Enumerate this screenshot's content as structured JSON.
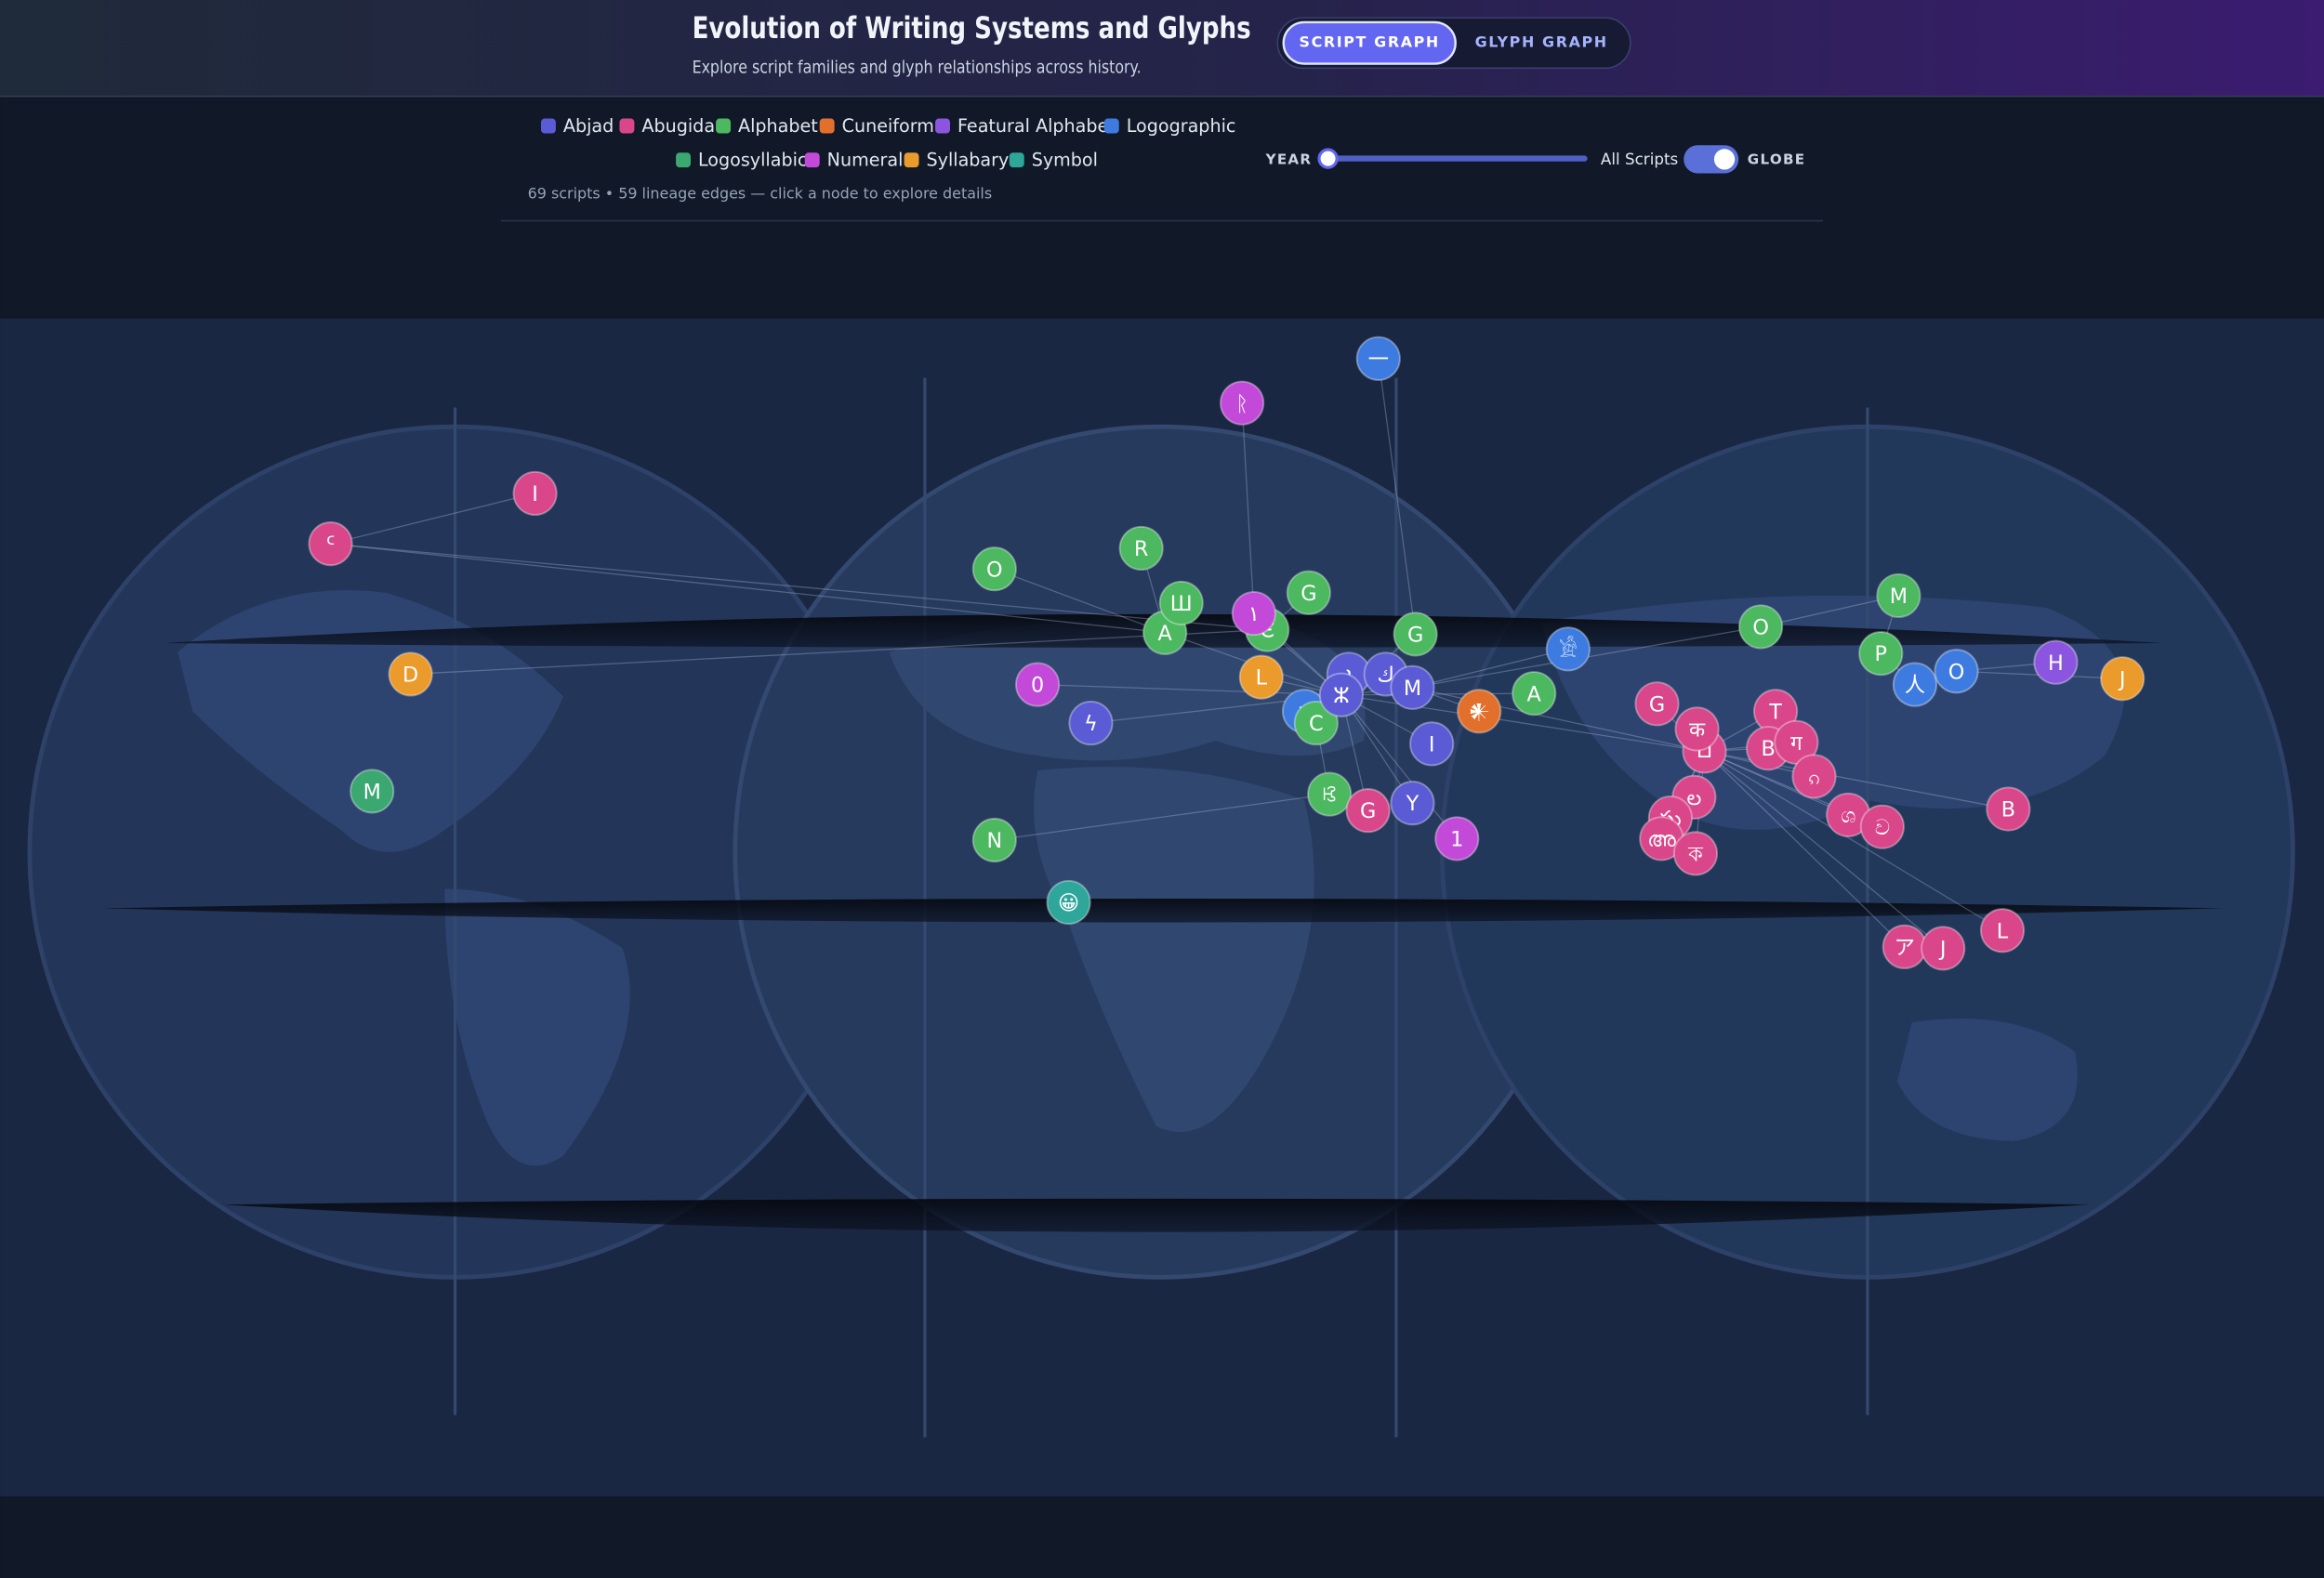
{
  "header": {
    "title": "Evolution of Writing Systems and Glyphs",
    "subtitle": "Explore script families and glyph relationships across history.",
    "tabs": [
      "SCRIPT GRAPH",
      "GLYPH GRAPH"
    ]
  },
  "legend": [
    {
      "label": "Abjad",
      "color": "#5b5bd6"
    },
    {
      "label": "Abugida",
      "color": "#d9478a"
    },
    {
      "label": "Alphabet",
      "color": "#4cb860"
    },
    {
      "label": "Cuneiform",
      "color": "#e2702c"
    },
    {
      "label": "Featural Alphabet",
      "color": "#8b55e0"
    },
    {
      "label": "Logographic",
      "color": "#3d7be0"
    },
    {
      "label": "Logosyllabic",
      "color": "#3aa870"
    },
    {
      "label": "Numeral",
      "color": "#c34ad8"
    },
    {
      "label": "Syllabary",
      "color": "#eb9a2c"
    },
    {
      "label": "Symbol",
      "color": "#2ea69a"
    }
  ],
  "controls": {
    "year_label": "YEAR",
    "year_value": "All Scripts",
    "globe_label": "GLOBE"
  },
  "stats": "69 scripts • 59 lineage edges — click a node to explore details",
  "nodes": [
    {
      "label": "一",
      "color": "#3d7be0"
    },
    {
      "label": "ᚱ",
      "color": "#c34ad8"
    },
    {
      "label": "I",
      "color": "#d9478a"
    },
    {
      "label": "ᑦ",
      "color": "#d9478a"
    },
    {
      "label": "O",
      "color": "#4cb860"
    },
    {
      "label": "R",
      "color": "#4cb860"
    },
    {
      "label": "G",
      "color": "#4cb860"
    },
    {
      "label": "A",
      "color": "#4cb860"
    },
    {
      "label": "Ш",
      "color": "#4cb860"
    },
    {
      "label": "Є",
      "color": "#4cb860"
    },
    {
      "label": "١",
      "color": "#c34ad8"
    },
    {
      "label": "L",
      "color": "#eb9a2c"
    },
    {
      "label": "D",
      "color": "#eb9a2c"
    },
    {
      "label": "G",
      "color": "#4cb860"
    },
    {
      "label": "𓀀",
      "color": "#3d7be0"
    },
    {
      "label": "O",
      "color": "#4cb860"
    },
    {
      "label": "M",
      "color": "#4cb860"
    },
    {
      "label": "P",
      "color": "#4cb860"
    },
    {
      "label": "人",
      "color": "#3d7be0"
    },
    {
      "label": "O",
      "color": "#3d7be0"
    },
    {
      "label": "H",
      "color": "#8b55e0"
    },
    {
      "label": "J",
      "color": "#eb9a2c"
    },
    {
      "label": "A",
      "color": "#4cb860"
    },
    {
      "label": "0",
      "color": "#c34ad8"
    },
    {
      "label": "ϟ",
      "color": "#5b5bd6"
    },
    {
      "label": "ܐ",
      "color": "#5b5bd6"
    },
    {
      "label": "ك",
      "color": "#5b5bd6"
    },
    {
      "label": "M",
      "color": "#5b5bd6"
    },
    {
      "label": "𐤀",
      "color": "#3d7be0"
    },
    {
      "label": "C",
      "color": "#4cb860"
    },
    {
      "label": "ⵣ",
      "color": "#5b5bd6"
    },
    {
      "label": "I",
      "color": "#5b5bd6"
    },
    {
      "label": "𒀭",
      "color": "#e2702c"
    },
    {
      "label": "ꕙ",
      "color": "#4cb860"
    },
    {
      "label": "G",
      "color": "#d9478a"
    },
    {
      "label": "Y",
      "color": "#5b5bd6"
    },
    {
      "label": "1",
      "color": "#c34ad8"
    },
    {
      "label": "N",
      "color": "#4cb860"
    },
    {
      "label": "😀",
      "color": "#2ea69a"
    },
    {
      "label": "M",
      "color": "#3aa870"
    },
    {
      "label": "G",
      "color": "#d9478a"
    },
    {
      "label": "𑀩",
      "color": "#d9478a"
    },
    {
      "label": "क",
      "color": "#d9478a"
    },
    {
      "label": "T",
      "color": "#d9478a"
    },
    {
      "label": "B",
      "color": "#d9478a"
    },
    {
      "label": "ग",
      "color": "#d9478a"
    },
    {
      "label": "ၵ",
      "color": "#d9478a"
    },
    {
      "label": "ల",
      "color": "#d9478a"
    },
    {
      "label": "ఘ",
      "color": "#d9478a"
    },
    {
      "label": "അ",
      "color": "#d9478a"
    },
    {
      "label": "ক",
      "color": "#d9478a"
    },
    {
      "label": "ශ",
      "color": "#d9478a"
    },
    {
      "label": "ව",
      "color": "#d9478a"
    },
    {
      "label": "B",
      "color": "#d9478a"
    },
    {
      "label": "L",
      "color": "#d9478a"
    },
    {
      "label": "ア",
      "color": "#d9478a"
    },
    {
      "label": "J",
      "color": "#d9478a"
    }
  ]
}
